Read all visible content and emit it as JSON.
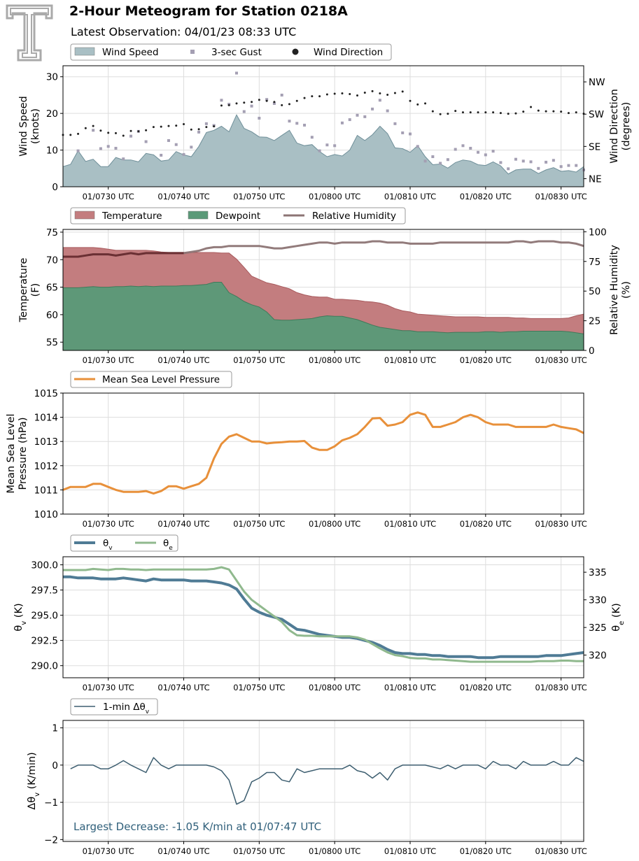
{
  "header": {
    "title": "2-Hour Meteogram for Station 0218A",
    "subtitle": "Latest Observation: 04/01/23 08:33 UTC"
  },
  "colors": {
    "wind_speed": "#a9bfc4",
    "wind_speed_line": "#6f8f99",
    "gust": "#a49fb3",
    "direction": "#222222",
    "temperature": "#c37d7f",
    "dewpoint": "#5b9978",
    "rh": "#8c7474",
    "pressure": "#e8903a",
    "theta_v": "#4f7b95",
    "theta_e": "#90b98e",
    "dtheta": "#3d5e70",
    "grid": "#dddddd",
    "logo": "#aaaaaa"
  },
  "x_ticks": [
    "01/0730 UTC",
    "01/0740 UTC",
    "01/0750 UTC",
    "01/0800 UTC",
    "01/0810 UTC",
    "01/0820 UTC",
    "01/0830 UTC"
  ],
  "chart_data": [
    {
      "id": "wind",
      "type": "area",
      "xlim": [
        0,
        69
      ],
      "ylabel": [
        "Wind Speed",
        "(knots)"
      ],
      "ylim": [
        0,
        33
      ],
      "yticks": [
        0,
        10,
        20,
        30
      ],
      "y2label": [
        "Wind Direction",
        "(degrees)"
      ],
      "y2lim": [
        22.5,
        360
      ],
      "y2ticks": [
        {
          "v": 45,
          "label": "NE"
        },
        {
          "v": 135,
          "label": "SE"
        },
        {
          "v": 225,
          "label": "SW"
        },
        {
          "v": 315,
          "label": "NW"
        }
      ],
      "legend": [
        "Wind Speed",
        "3-sec Gust",
        "Wind Direction"
      ],
      "series": [
        {
          "name": "Wind Speed",
          "values": [
            5.5,
            6.1,
            9.8,
            6.9,
            7.5,
            5.5,
            5.5,
            8.0,
            7.3,
            7.3,
            6.8,
            9.1,
            8.7,
            7.0,
            7.3,
            9.6,
            8.7,
            8.2,
            11.0,
            14.8,
            15.4,
            16.5,
            15.0,
            19.6,
            15.9,
            15.0,
            13.6,
            13.5,
            12.6,
            14.0,
            15.4,
            11.9,
            11.2,
            11.5,
            9.6,
            8.2,
            8.8,
            8.4,
            10.0,
            14.0,
            12.6,
            14.2,
            16.5,
            14.5,
            10.6,
            10.4,
            9.4,
            11.2,
            8.2,
            6.0,
            6.2,
            5.1,
            6.6,
            7.3,
            7.0,
            6.0,
            5.8,
            6.8,
            5.7,
            3.5,
            4.6,
            4.8,
            4.8,
            3.6,
            4.6,
            5.2,
            4.2,
            4.4,
            4.0,
            5.5
          ]
        },
        {
          "name": "3-sec Gust",
          "values": [
            null,
            null,
            9.8,
            null,
            15.4,
            10.4,
            11.0,
            10.5,
            7.6,
            13.8,
            15.1,
            12.3,
            null,
            8.6,
            12.6,
            11.5,
            8.8,
            10.8,
            14.9,
            17.2,
            16.7,
            23.6,
            22.5,
            31.0,
            20.5,
            22.0,
            18.7,
            23.8,
            22.7,
            25.0,
            17.9,
            17.3,
            16.8,
            13.5,
            9.8,
            11.4,
            11.2,
            17.4,
            18.3,
            19.5,
            19.1,
            21.2,
            23.6,
            20.7,
            17.2,
            14.7,
            14.4,
            11.0,
            7.0,
            8.2,
            6.4,
            7.4,
            10.2,
            11.2,
            10.5,
            9.4,
            8.7,
            9.7,
            6.6,
            4.9,
            7.5,
            7.0,
            6.8,
            5.0,
            6.7,
            7.2,
            5.5,
            5.8,
            5.8,
            4.6
          ]
        },
        {
          "name": "Wind Direction",
          "values": [
            167,
            167,
            170,
            186,
            192,
            179,
            173,
            172,
            165,
            178,
            177,
            180,
            189,
            190,
            192,
            193,
            197,
            182,
            183,
            189,
            191,
            249,
            250,
            255,
            257,
            259,
            265,
            262,
            259,
            250,
            253,
            262,
            270,
            275,
            275,
            280,
            282,
            283,
            281,
            277,
            285,
            289,
            283,
            279,
            284,
            288,
            262,
            252,
            255,
            233,
            225,
            226,
            234,
            230,
            230,
            230,
            230,
            230,
            228,
            226,
            227,
            232,
            245,
            235,
            233,
            233,
            232,
            228,
            230,
            226
          ]
        }
      ]
    },
    {
      "id": "temperature",
      "type": "area",
      "xlim": [
        0,
        69
      ],
      "ylabel": [
        "Temperature",
        "(F)"
      ],
      "ylim": [
        53.5,
        75.5
      ],
      "yticks": [
        55,
        60,
        65,
        70,
        75
      ],
      "y2label": [
        "Relative Humidity",
        "(%)"
      ],
      "y2lim": [
        0,
        102
      ],
      "y2ticks": [
        0,
        25,
        50,
        75,
        100
      ],
      "legend": [
        "Temperature",
        "Dewpoint",
        "Relative Humidity"
      ],
      "series": [
        {
          "name": "Temperature",
          "values": [
            72.2,
            72.2,
            72.2,
            72.2,
            72.2,
            72.1,
            71.9,
            71.7,
            71.7,
            71.7,
            71.7,
            71.7,
            71.6,
            71.4,
            71.3,
            71.3,
            71.3,
            71.3,
            71.3,
            71.3,
            71.3,
            71.2,
            71.2,
            70.1,
            68.6,
            67.0,
            66.4,
            65.8,
            65.5,
            65.1,
            64.7,
            64.0,
            63.6,
            63.3,
            63.2,
            63.2,
            62.8,
            62.8,
            62.7,
            62.6,
            62.4,
            62.3,
            62.1,
            61.7,
            61.1,
            60.7,
            60.5,
            60.1,
            60.0,
            59.9,
            59.8,
            59.7,
            59.6,
            59.6,
            59.6,
            59.6,
            59.5,
            59.5,
            59.5,
            59.5,
            59.4,
            59.4,
            59.3,
            59.3,
            59.3,
            59.3,
            59.3,
            59.4,
            59.8,
            60.1
          ]
        },
        {
          "name": "Dewpoint",
          "values": [
            64.9,
            64.9,
            64.9,
            65.0,
            65.1,
            65.0,
            65.0,
            65.1,
            65.1,
            65.2,
            65.1,
            65.2,
            65.1,
            65.2,
            65.2,
            65.2,
            65.3,
            65.3,
            65.4,
            65.5,
            65.9,
            65.9,
            64.0,
            63.3,
            62.4,
            61.8,
            61.4,
            60.5,
            59.1,
            59.0,
            59.0,
            59.1,
            59.2,
            59.3,
            59.6,
            59.8,
            59.7,
            59.7,
            59.4,
            59.1,
            58.6,
            58.1,
            57.7,
            57.5,
            57.3,
            57.1,
            57.1,
            56.9,
            56.9,
            56.9,
            56.8,
            56.7,
            56.8,
            56.8,
            56.8,
            56.8,
            56.9,
            56.9,
            56.8,
            56.9,
            56.9,
            57.0,
            57.0,
            57.0,
            57.0,
            57.0,
            57.0,
            56.9,
            56.7,
            56.5
          ]
        },
        {
          "name": "Relative Humidity",
          "values": [
            79,
            79,
            79,
            80,
            81,
            81,
            81,
            80,
            81,
            82,
            81,
            82,
            82,
            82,
            82,
            82,
            82,
            83,
            84,
            86,
            87,
            87,
            88,
            88,
            88,
            88,
            88,
            87,
            86,
            86,
            87,
            88,
            89,
            90,
            91,
            91,
            90,
            91,
            91,
            91,
            91,
            92,
            92,
            91,
            91,
            91,
            90,
            90,
            90,
            90,
            91,
            91,
            91,
            91,
            91,
            91,
            91,
            91,
            91,
            91,
            92,
            92,
            91,
            92,
            92,
            92,
            91,
            91,
            90,
            88
          ]
        }
      ]
    },
    {
      "id": "pressure",
      "type": "line",
      "xlim": [
        0,
        69
      ],
      "ylabel": [
        "Mean Sea Level",
        "Pressure (hPa)"
      ],
      "ylim": [
        1010,
        1015
      ],
      "yticks": [
        1010,
        1011,
        1012,
        1013,
        1014,
        1015
      ],
      "legend": [
        "Mean Sea Level Pressure"
      ],
      "series": [
        {
          "name": "Mean Sea Level Pressure",
          "values": [
            1011.0,
            1011.12,
            1011.12,
            1011.12,
            1011.25,
            1011.25,
            1011.12,
            1011.0,
            1010.92,
            1010.92,
            1010.92,
            1010.95,
            1010.85,
            1010.95,
            1011.15,
            1011.15,
            1011.05,
            1011.15,
            1011.25,
            1011.5,
            1012.3,
            1012.9,
            1013.2,
            1013.3,
            1013.15,
            1013.0,
            1013.0,
            1012.92,
            1012.95,
            1012.97,
            1013.0,
            1013.0,
            1013.02,
            1012.75,
            1012.65,
            1012.65,
            1012.8,
            1013.05,
            1013.15,
            1013.3,
            1013.6,
            1013.95,
            1013.97,
            1013.65,
            1013.7,
            1013.8,
            1014.1,
            1014.2,
            1014.1,
            1013.6,
            1013.6,
            1013.7,
            1013.8,
            1014.0,
            1014.1,
            1014.0,
            1013.8,
            1013.7,
            1013.7,
            1013.7,
            1013.6,
            1013.6,
            1013.6,
            1013.6,
            1013.6,
            1013.7,
            1013.6,
            1013.55,
            1013.5,
            1013.35
          ]
        }
      ]
    },
    {
      "id": "theta",
      "type": "line",
      "xlim": [
        0,
        69
      ],
      "ylabel": [
        "θ",
        "v",
        " (K)"
      ],
      "ylim": [
        288.8,
        300.8
      ],
      "yticks": [
        290.0,
        292.5,
        295.0,
        297.5,
        300.0
      ],
      "y2label": [
        "θ",
        "e",
        " (K)"
      ],
      "y2lim": [
        315.9,
        337.8
      ],
      "y2ticks": [
        320,
        325,
        330,
        335
      ],
      "legend": [
        [
          "θ",
          "v"
        ],
        [
          "θ",
          "e"
        ]
      ],
      "series": [
        {
          "name": "θv",
          "values": [
            298.8,
            298.8,
            298.7,
            298.7,
            298.7,
            298.6,
            298.6,
            298.6,
            298.7,
            298.6,
            298.5,
            298.4,
            298.6,
            298.5,
            298.5,
            298.5,
            298.5,
            298.4,
            298.4,
            298.4,
            298.3,
            298.2,
            298.0,
            297.6,
            296.6,
            295.7,
            295.3,
            295.0,
            294.8,
            294.6,
            294.1,
            293.6,
            293.5,
            293.3,
            293.1,
            293.0,
            292.9,
            292.8,
            292.8,
            292.7,
            292.5,
            292.3,
            292.0,
            291.6,
            291.3,
            291.2,
            291.2,
            291.1,
            291.1,
            291.0,
            291.0,
            290.9,
            290.9,
            290.9,
            290.9,
            290.8,
            290.8,
            290.8,
            290.9,
            290.9,
            290.9,
            290.9,
            290.9,
            290.9,
            291.0,
            291.0,
            291.0,
            291.1,
            291.2,
            291.3
          ]
        },
        {
          "name": "θe",
          "values": [
            335.4,
            335.4,
            335.4,
            335.4,
            335.6,
            335.5,
            335.4,
            335.6,
            335.6,
            335.5,
            335.5,
            335.4,
            335.5,
            335.5,
            335.5,
            335.5,
            335.5,
            335.5,
            335.5,
            335.5,
            335.6,
            335.9,
            335.5,
            333.5,
            331.5,
            330.0,
            329.0,
            328.0,
            327.0,
            326.0,
            324.5,
            323.6,
            323.5,
            323.5,
            323.4,
            323.4,
            323.4,
            323.4,
            323.4,
            323.2,
            322.8,
            322.0,
            321.2,
            320.5,
            320.0,
            319.8,
            319.5,
            319.4,
            319.4,
            319.2,
            319.2,
            319.1,
            319.0,
            318.9,
            318.8,
            318.8,
            318.8,
            318.8,
            318.8,
            318.8,
            318.8,
            318.8,
            318.8,
            318.9,
            318.9,
            318.9,
            319.0,
            319.0,
            318.9,
            318.9
          ]
        }
      ]
    },
    {
      "id": "dtheta",
      "type": "line",
      "xlim": [
        0,
        69
      ],
      "ylabel": [
        "Δθ",
        "v",
        " (K/min)"
      ],
      "ylim": [
        -2.05,
        1.2
      ],
      "yticks": [
        {
          "v": -2,
          "label": "−2"
        },
        {
          "v": -1,
          "label": "−1"
        },
        {
          "v": 0,
          "label": "0"
        },
        {
          "v": 1,
          "label": "1"
        }
      ],
      "legend": [
        [
          "1-min Δθ",
          "v"
        ]
      ],
      "annotation": "Largest Decrease: -1.05 K/min at 01/07:47 UTC",
      "series": [
        {
          "name": "1-min Δθv",
          "values": [
            null,
            -0.1,
            0.0,
            0.0,
            0.0,
            -0.1,
            -0.1,
            0.0,
            0.12,
            0.0,
            -0.1,
            -0.2,
            0.2,
            0.0,
            -0.1,
            0.0,
            0.0,
            0.0,
            0.0,
            0.0,
            -0.05,
            -0.15,
            -0.4,
            -1.05,
            -0.95,
            -0.45,
            -0.35,
            -0.2,
            -0.2,
            -0.4,
            -0.45,
            -0.1,
            -0.2,
            -0.15,
            -0.1,
            -0.1,
            -0.1,
            -0.1,
            0.0,
            -0.15,
            -0.2,
            -0.35,
            -0.2,
            -0.4,
            -0.1,
            0.0,
            0.0,
            0.0,
            0.0,
            -0.05,
            -0.1,
            0.0,
            -0.1,
            0.0,
            0.0,
            0.0,
            -0.1,
            0.1,
            0.0,
            0.0,
            -0.1,
            0.1,
            0.0,
            0.0,
            0.0,
            0.1,
            0.0,
            0.0,
            0.2,
            0.1
          ]
        }
      ]
    }
  ]
}
